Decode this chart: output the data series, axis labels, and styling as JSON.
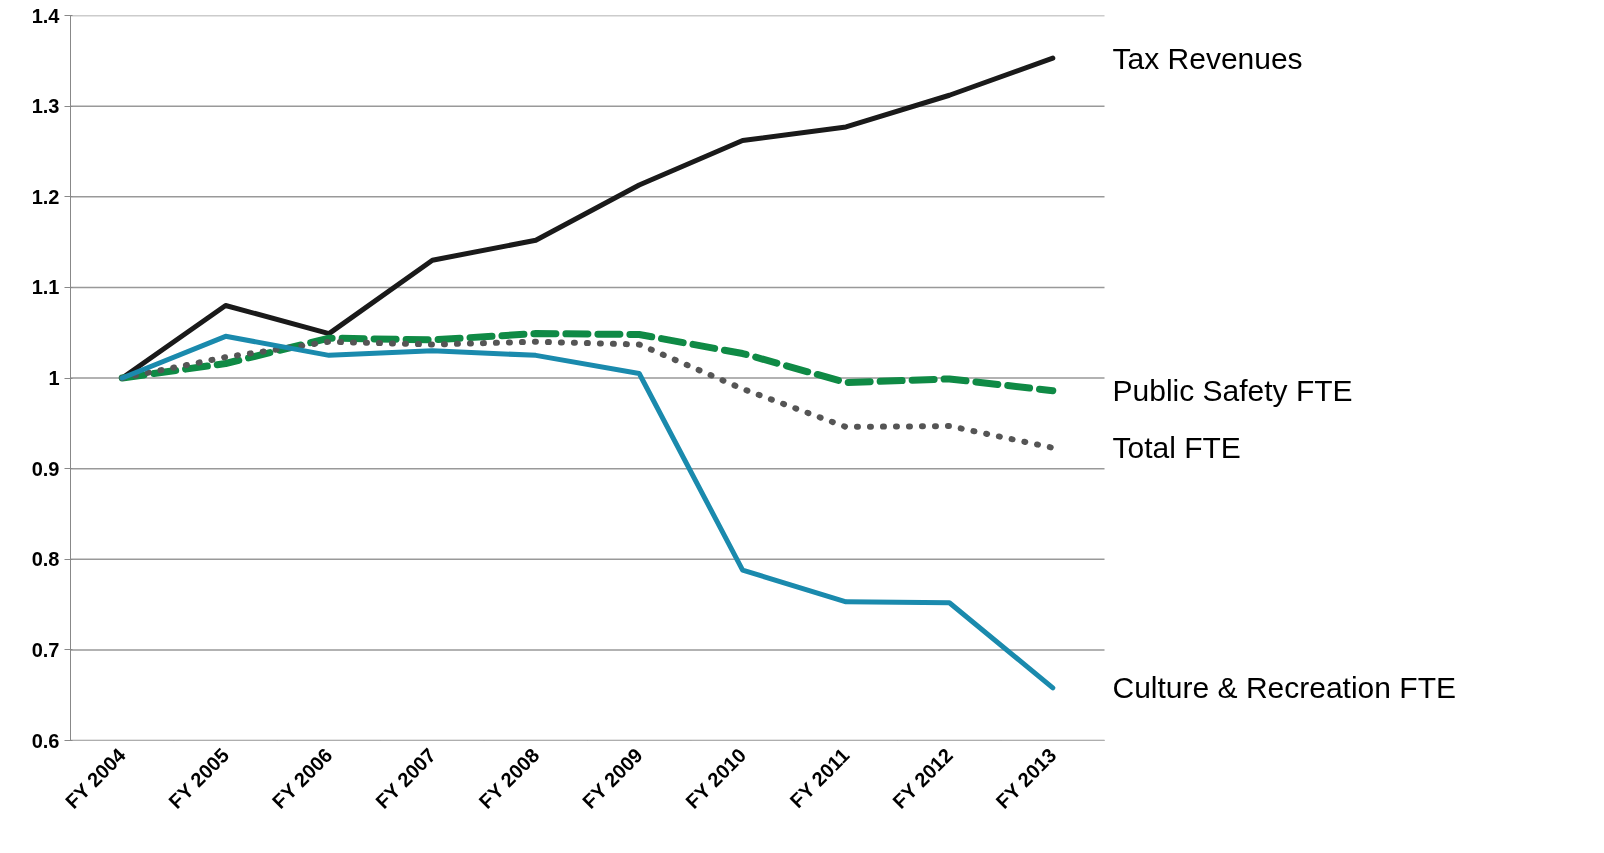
{
  "chart_data": {
    "type": "line",
    "categories": [
      "FY 2004",
      "FY 2005",
      "FY 2006",
      "FY 2007",
      "FY 2008",
      "FY 2009",
      "FY 2010",
      "FY 2011",
      "FY 2012",
      "FY 2013"
    ],
    "series": [
      {
        "name": "Tax Revenues",
        "color": "#1a1a1a",
        "line_style": "solid",
        "values": [
          1.0,
          1.08,
          1.049,
          1.13,
          1.152,
          1.213,
          1.262,
          1.277,
          1.312,
          1.353
        ]
      },
      {
        "name": "Public Safety FTE",
        "color": "#0f8a45",
        "line_style": "dashed",
        "values": [
          1.0,
          1.016,
          1.044,
          1.042,
          1.049,
          1.048,
          1.027,
          0.995,
          0.999,
          0.986
        ]
      },
      {
        "name": "Total FTE",
        "color": "#555555",
        "line_style": "dotted",
        "values": [
          1.0,
          1.023,
          1.04,
          1.037,
          1.04,
          1.037,
          0.988,
          0.946,
          0.947,
          0.923
        ]
      },
      {
        "name": "Culture & Recreation FTE",
        "color": "#1a8aad",
        "line_style": "solid",
        "values": [
          1.0,
          1.046,
          1.025,
          1.03,
          1.025,
          1.005,
          0.788,
          0.753,
          0.752,
          0.658
        ]
      }
    ],
    "ylim": [
      0.6,
      1.4
    ],
    "yticks": [
      0.6,
      0.7,
      0.8,
      0.9,
      1,
      1.1,
      1.2,
      1.3,
      1.4
    ],
    "grid": "y",
    "marker": "none"
  }
}
